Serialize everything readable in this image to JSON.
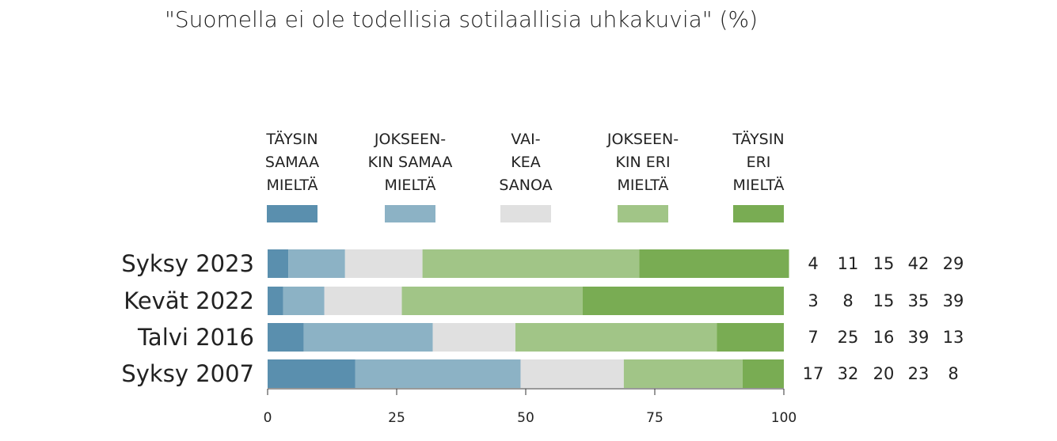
{
  "chart_data": {
    "type": "bar",
    "orientation": "horizontal",
    "stacked": true,
    "title": "\"Suomella ei ole todellisia sotilaallisia uhkakuvia\" (%)",
    "categories": [
      "Syksy 2023",
      "Kevät 2022",
      "Talvi 2016",
      "Syksy 2007"
    ],
    "series": [
      {
        "name": "TÄYSIN SAMAA MIELTÄ",
        "legend_lines": [
          "TÄYSIN",
          "SAMAA",
          "MIELTÄ"
        ],
        "color": "#5a8fae",
        "values": [
          4,
          3,
          7,
          17
        ]
      },
      {
        "name": "JOKSEENKIN SAMAA MIELTÄ",
        "legend_lines": [
          "JOKSEEN-",
          "KIN SAMAA",
          "MIELTÄ"
        ],
        "color": "#8cb2c5",
        "values": [
          11,
          8,
          25,
          32
        ]
      },
      {
        "name": "VAIKEA SANOA",
        "legend_lines": [
          "VAI-",
          "KEA",
          "SANOA"
        ],
        "color": "#e0e0e0",
        "values": [
          15,
          15,
          16,
          20
        ]
      },
      {
        "name": "JOKSEENKIN ERI MIELTÄ",
        "legend_lines": [
          "JOKSEEN-",
          "KIN ERI",
          "MIELTÄ"
        ],
        "color": "#a1c587",
        "values": [
          42,
          35,
          39,
          23
        ]
      },
      {
        "name": "TÄYSIN ERI MIELTÄ",
        "legend_lines": [
          "TÄYSIN",
          "ERI",
          "MIELTÄ"
        ],
        "color": "#79ac53",
        "values": [
          29,
          39,
          13,
          8
        ]
      }
    ],
    "xlim": [
      0,
      100
    ],
    "xticks": [
      0,
      25,
      50,
      75,
      100
    ],
    "xlabel": "",
    "ylabel": "",
    "grid": false,
    "legend_position": "top"
  }
}
